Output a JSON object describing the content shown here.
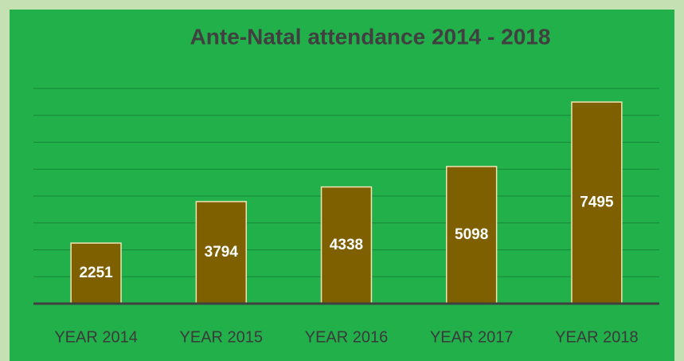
{
  "chart_data": {
    "type": "bar",
    "title": "Ante-Natal attendance 2014 - 2018",
    "categories": [
      "YEAR 2014",
      "YEAR 2015",
      "YEAR 2016",
      "YEAR 2017",
      "YEAR 2018"
    ],
    "values": [
      2251,
      3794,
      4338,
      5098,
      7495
    ],
    "color": "#7f6000",
    "ylim": [
      0,
      8000
    ],
    "yticks": [
      0,
      1000,
      2000,
      3000,
      4000,
      5000,
      6000,
      7000,
      8000
    ],
    "grid": true
  }
}
